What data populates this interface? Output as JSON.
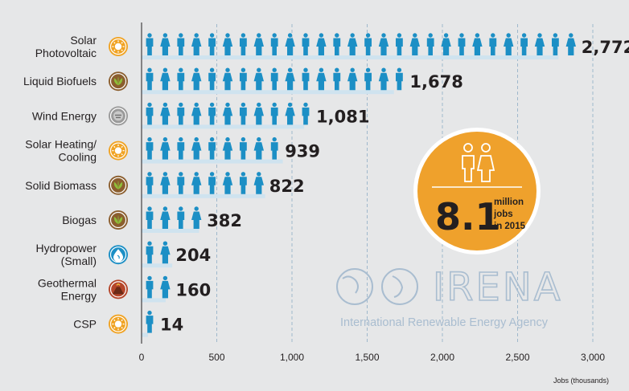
{
  "chart_data": {
    "type": "bar",
    "orientation": "horizontal",
    "categories": [
      "Solar Photovoltaic",
      "Liquid Biofuels",
      "Wind Energy",
      "Solar Heating/ Cooling",
      "Solid Biomass",
      "Biogas",
      "Hydropower (Small)",
      "Geothermal Energy",
      "CSP"
    ],
    "category_lines": [
      [
        "Solar",
        "Photovoltaic"
      ],
      [
        "Liquid Biofuels"
      ],
      [
        "Wind Energy"
      ],
      [
        "Solar Heating/",
        "Cooling"
      ],
      [
        "Solid Biomass"
      ],
      [
        "Biogas"
      ],
      [
        "Hydropower",
        "(Small)"
      ],
      [
        "Geothermal",
        "Energy"
      ],
      [
        "CSP"
      ]
    ],
    "category_icons": [
      "sun-icon",
      "leaf-icon",
      "turbine-icon",
      "sun-icon",
      "leaf-icon",
      "leaf-icon",
      "water-drop-icon",
      "volcano-icon",
      "sun-icon"
    ],
    "values": [
      2772,
      1678,
      1081,
      939,
      822,
      382,
      204,
      160,
      14
    ],
    "value_labels": [
      "2,772",
      "1,678",
      "1,081",
      "939",
      "822",
      "382",
      "204",
      "160",
      "14"
    ],
    "xlabel": "Jobs (thousands)",
    "ylabel": "",
    "xlim": [
      0,
      3000
    ],
    "x_ticks": [
      0,
      500,
      1000,
      1500,
      2000,
      2500,
      3000
    ],
    "x_tick_labels": [
      "0",
      "500",
      "1,000",
      "1,500",
      "2,000",
      "2,500",
      "3,000"
    ],
    "grid": "vertical dashed",
    "legend": "none",
    "units_per_figure": 100
  },
  "badge": {
    "big": "8.1",
    "line1": "million",
    "line2": "jobs",
    "line3": "in 2015"
  },
  "watermark": {
    "name": "IRENA",
    "tagline": "International Renewable Energy Agency"
  },
  "colors": {
    "figure": "#1c8fc5",
    "bar_shadow": "#cfe3ef",
    "badge": "#efa12c",
    "text": "#231f20",
    "grid": "#9fb8cc",
    "icon_solar": "#f0a324",
    "icon_bio": "#8b5e2e",
    "icon_wind": "#9a9a9a",
    "icon_hydro": "#1c8fc5",
    "icon_geo": "#b5462a"
  }
}
